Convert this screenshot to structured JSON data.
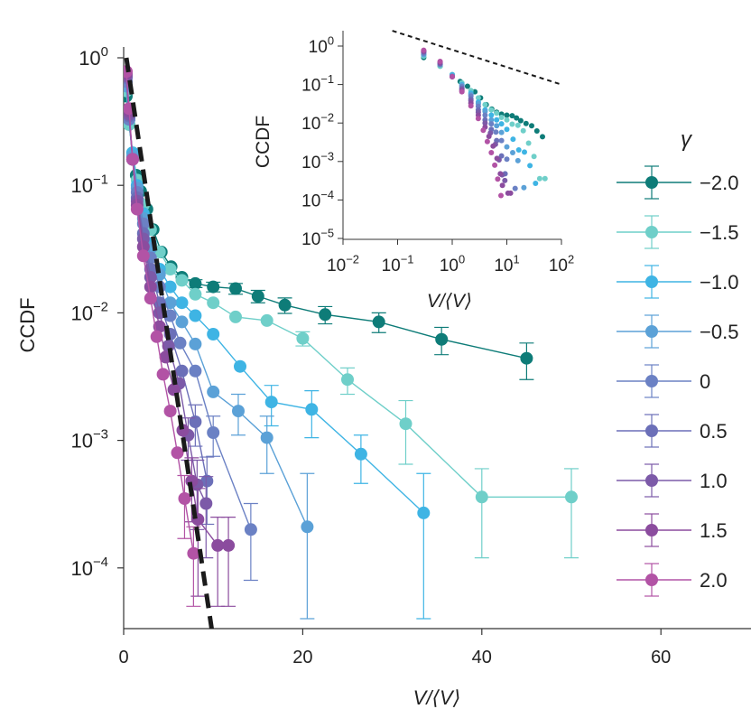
{
  "chart_data": [
    {
      "type": "scatter",
      "title": "",
      "xlabel_main": "V/",
      "xlabel_brackets": "⟨V⟩",
      "ylabel": "CCDF",
      "xscale": "linear",
      "yscale": "log",
      "xlim": [
        0,
        70
      ],
      "ylim": [
        3e-05,
        1.2
      ],
      "x_ticks": [
        "0",
        "20",
        "40",
        "60"
      ],
      "x_tick_values": [
        0,
        20,
        40,
        60
      ],
      "y_ticks": [
        {
          "value": 1,
          "base": "10",
          "exp": "0"
        },
        {
          "value": 0.1,
          "base": "10",
          "exp": "−1"
        },
        {
          "value": 0.01,
          "base": "10",
          "exp": "−2"
        },
        {
          "value": 0.001,
          "base": "10",
          "exp": "−3"
        },
        {
          "value": 0.0001,
          "base": "10",
          "exp": "−4"
        }
      ],
      "legend_title": "γ",
      "legend_position": "right",
      "reference_line": {
        "style": "dashed",
        "color": "#1a1a1a",
        "points": [
          [
            0.3,
            1.0
          ],
          [
            10.3,
            2e-05
          ]
        ]
      },
      "series": [
        {
          "name": "−2.0",
          "color": "#0e7c78",
          "points": [
            [
              0.3,
              0.5
            ],
            [
              0.6,
              0.3
            ],
            [
              1.0,
              0.18
            ],
            [
              1.4,
              0.12
            ],
            [
              1.9,
              0.09
            ],
            [
              2.6,
              0.065
            ],
            [
              3.3,
              0.045
            ],
            [
              4.2,
              0.03
            ],
            [
              5.3,
              0.023
            ],
            [
              6.5,
              0.019
            ],
            [
              8.0,
              0.017
            ],
            [
              10.0,
              0.016
            ],
            [
              12.5,
              0.0155
            ],
            [
              15,
              0.0135
            ],
            [
              18,
              0.0115
            ],
            [
              22.5,
              0.0097
            ],
            [
              28.5,
              0.0085
            ],
            [
              35.5,
              0.0062
            ],
            [
              45,
              0.0044
            ]
          ],
          "errors": [
            [
              8,
              0.0012
            ],
            [
              10,
              0.0014
            ],
            [
              12.5,
              0.0015
            ],
            [
              15,
              0.0015
            ],
            [
              18,
              0.0016
            ],
            [
              22.5,
              0.0015
            ],
            [
              28.5,
              0.0015
            ],
            [
              35.5,
              0.0015
            ],
            [
              45,
              0.0014
            ]
          ]
        },
        {
          "name": "−1.5",
          "color": "#6fcfc9",
          "points": [
            [
              0.3,
              0.55
            ],
            [
              0.6,
              0.3
            ],
            [
              1.0,
              0.18
            ],
            [
              1.5,
              0.11
            ],
            [
              2.2,
              0.07
            ],
            [
              3.0,
              0.045
            ],
            [
              4.0,
              0.03
            ],
            [
              5.2,
              0.022
            ],
            [
              6.5,
              0.018
            ],
            [
              8.0,
              0.014
            ],
            [
              10.0,
              0.012
            ],
            [
              12.5,
              0.0093
            ],
            [
              16.0,
              0.0087
            ],
            [
              20.0,
              0.0063
            ],
            [
              25.0,
              0.003
            ],
            [
              31.5,
              0.00135
            ],
            [
              40.0,
              0.00036
            ],
            [
              50.0,
              0.00036
            ]
          ],
          "errors": [
            [
              20,
              0.0008
            ],
            [
              25,
              0.0007
            ],
            [
              31.5,
              0.0007
            ],
            [
              40,
              0.00024
            ],
            [
              50,
              0.00024
            ]
          ]
        },
        {
          "name": "−1.0",
          "color": "#3eb4e4",
          "points": [
            [
              0.3,
              0.6
            ],
            [
              0.6,
              0.33
            ],
            [
              1.0,
              0.18
            ],
            [
              1.5,
              0.1
            ],
            [
              2.2,
              0.06
            ],
            [
              3.0,
              0.035
            ],
            [
              4.0,
              0.022
            ],
            [
              5.2,
              0.016
            ],
            [
              6.5,
              0.012
            ],
            [
              8.0,
              0.0095
            ],
            [
              10.0,
              0.0068
            ],
            [
              13.0,
              0.0038
            ],
            [
              16.5,
              0.002
            ],
            [
              21.0,
              0.00175
            ],
            [
              26.5,
              0.00078
            ],
            [
              33.5,
              0.00027
            ]
          ],
          "errors": [
            [
              16.5,
              0.0007
            ],
            [
              21,
              0.0007
            ],
            [
              26.5,
              0.00032
            ],
            [
              33.5,
              0.00028
            ]
          ]
        },
        {
          "name": "−0.5",
          "color": "#5ba1d7",
          "points": [
            [
              0.3,
              0.6
            ],
            [
              0.6,
              0.33
            ],
            [
              1.0,
              0.17
            ],
            [
              1.5,
              0.095
            ],
            [
              2.2,
              0.055
            ],
            [
              3.0,
              0.032
            ],
            [
              4.0,
              0.02
            ],
            [
              5.2,
              0.012
            ],
            [
              6.5,
              0.0085
            ],
            [
              8.0,
              0.0057
            ],
            [
              10.0,
              0.0024
            ],
            [
              12.8,
              0.0017
            ],
            [
              16.0,
              0.00105
            ],
            [
              20.5,
              0.00021
            ]
          ],
          "errors": [
            [
              12.8,
              0.0006
            ],
            [
              16,
              0.0005
            ],
            [
              20.5,
              0.00034
            ]
          ]
        },
        {
          "name": "0",
          "color": "#6b81c4",
          "points": [
            [
              0.3,
              0.65
            ],
            [
              0.6,
              0.33
            ],
            [
              1.0,
              0.16
            ],
            [
              1.5,
              0.088
            ],
            [
              2.2,
              0.05
            ],
            [
              3.0,
              0.027
            ],
            [
              4.0,
              0.016
            ],
            [
              5.2,
              0.0095
            ],
            [
              6.3,
              0.0058
            ],
            [
              8.0,
              0.0035
            ],
            [
              10.0,
              0.00115
            ],
            [
              14.2,
              0.0002
            ]
          ],
          "errors": [
            [
              10,
              0.0004
            ],
            [
              14.2,
              0.00012
            ]
          ]
        },
        {
          "name": "0.5",
          "color": "#6b6fb8",
          "points": [
            [
              0.3,
              0.7
            ],
            [
              0.6,
              0.35
            ],
            [
              1.0,
              0.16
            ],
            [
              1.5,
              0.08
            ],
            [
              2.2,
              0.042
            ],
            [
              3.0,
              0.022
            ],
            [
              4.0,
              0.012
            ],
            [
              5.2,
              0.0068
            ],
            [
              6.5,
              0.0035
            ],
            [
              8.0,
              0.0014
            ],
            [
              9.3,
              0.00048
            ]
          ],
          "errors": [
            [
              8,
              0.0005
            ],
            [
              9.3,
              0.00026
            ]
          ]
        },
        {
          "name": "1.0",
          "color": "#7c5aa8",
          "points": [
            [
              0.3,
              0.72
            ],
            [
              0.6,
              0.36
            ],
            [
              1.0,
              0.16
            ],
            [
              1.5,
              0.075
            ],
            [
              2.2,
              0.038
            ],
            [
              3.0,
              0.019
            ],
            [
              4.0,
              0.01
            ],
            [
              5.0,
              0.0055
            ],
            [
              6.2,
              0.0028
            ],
            [
              7.2,
              0.0011
            ],
            [
              8.2,
              0.00045
            ],
            [
              9.2,
              0.00032
            ]
          ],
          "errors": [
            [
              7.2,
              0.0004
            ],
            [
              8.2,
              0.00025
            ],
            [
              9.2,
              0.0002
            ]
          ]
        },
        {
          "name": "1.5",
          "color": "#8b4c9e",
          "points": [
            [
              0.3,
              0.75
            ],
            [
              0.6,
              0.38
            ],
            [
              1.0,
              0.16
            ],
            [
              1.5,
              0.07
            ],
            [
              2.2,
              0.033
            ],
            [
              3.0,
              0.016
            ],
            [
              4.0,
              0.0078
            ],
            [
              4.7,
              0.0045
            ],
            [
              5.6,
              0.0025
            ],
            [
              6.6,
              0.0012
            ],
            [
              7.6,
              0.00048
            ],
            [
              8.3,
              0.00024
            ],
            [
              10.5,
              0.00015
            ],
            [
              11.7,
              0.00015
            ]
          ],
          "errors": [
            [
              7.6,
              0.00025
            ],
            [
              8.3,
              0.00018
            ],
            [
              10.5,
              0.0001
            ],
            [
              11.7,
              0.0001
            ]
          ]
        },
        {
          "name": "2.0",
          "color": "#b253a5",
          "points": [
            [
              0.3,
              0.78
            ],
            [
              0.6,
              0.4
            ],
            [
              1.0,
              0.16
            ],
            [
              1.5,
              0.065
            ],
            [
              2.2,
              0.028
            ],
            [
              3.0,
              0.013
            ],
            [
              3.7,
              0.0065
            ],
            [
              4.4,
              0.0033
            ],
            [
              5.2,
              0.0017
            ],
            [
              6.0,
              0.0008
            ],
            [
              6.8,
              0.00035
            ],
            [
              7.8,
              0.00013
            ]
          ],
          "errors": [
            [
              6.8,
              0.00018
            ],
            [
              7.8,
              8e-05
            ]
          ]
        }
      ]
    },
    {
      "type": "scatter",
      "title": "",
      "xlabel_main": "V/",
      "xlabel_brackets": "⟨V⟩",
      "ylabel": "CCDF",
      "xscale": "log",
      "yscale": "log",
      "xlim": [
        0.01,
        100
      ],
      "ylim": [
        1e-05,
        3
      ],
      "x_ticks": [
        {
          "value": 0.01,
          "base": "10",
          "exp": "−2"
        },
        {
          "value": 0.1,
          "base": "10",
          "exp": "−1"
        },
        {
          "value": 1,
          "base": "10",
          "exp": "0"
        },
        {
          "value": 10,
          "base": "10",
          "exp": "1"
        },
        {
          "value": 100,
          "base": "10",
          "exp": "2"
        }
      ],
      "y_ticks": [
        {
          "value": 1,
          "base": "10",
          "exp": "0"
        },
        {
          "value": 0.1,
          "base": "10",
          "exp": "−1"
        },
        {
          "value": 0.01,
          "base": "10",
          "exp": "−2"
        },
        {
          "value": 0.001,
          "base": "10",
          "exp": "−3"
        },
        {
          "value": 0.0001,
          "base": "10",
          "exp": "−4"
        },
        {
          "value": 1e-05,
          "base": "10",
          "exp": "−5"
        }
      ],
      "reference_line": {
        "style": "dotted",
        "color": "#1a1a1a",
        "points": [
          [
            0.08,
            2.5
          ],
          [
            100,
            0.1
          ]
        ]
      }
    }
  ]
}
